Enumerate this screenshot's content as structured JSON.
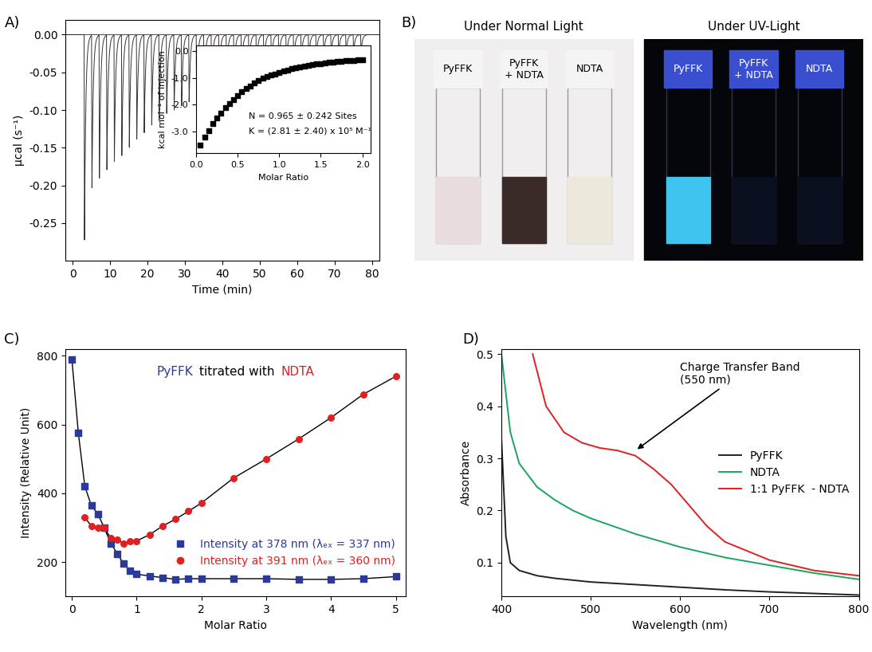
{
  "chart_data": [
    {
      "label": "A)",
      "type": "thermogram",
      "color": "#333333",
      "xlabel": "Time (min)",
      "ylabel": "µcal (s⁻¹)",
      "x": [
        3,
        5,
        7,
        9,
        11,
        13,
        15,
        17,
        19,
        21,
        23,
        25,
        27,
        29,
        31,
        33,
        35,
        37,
        39,
        41,
        43,
        45,
        47,
        49,
        51,
        53,
        55,
        57,
        59,
        61,
        63,
        65,
        67,
        69,
        71,
        73,
        75,
        77
      ],
      "values": [
        -0.275,
        -0.205,
        -0.19,
        -0.18,
        -0.17,
        -0.16,
        -0.15,
        -0.14,
        -0.13,
        -0.12,
        -0.115,
        -0.105,
        -0.1,
        -0.095,
        -0.09,
        -0.085,
        -0.08,
        -0.075,
        -0.07,
        -0.066,
        -0.062,
        -0.058,
        -0.055,
        -0.052,
        -0.05,
        -0.047,
        -0.045,
        -0.043,
        -0.04,
        -0.038,
        -0.036,
        -0.034,
        -0.032,
        -0.03,
        -0.028,
        -0.027,
        -0.026,
        -0.025
      ],
      "baseline": 0,
      "xlim": [
        -2,
        82
      ],
      "ylim": [
        -0.3,
        0.02
      ],
      "xticks": [
        0,
        10,
        20,
        30,
        40,
        50,
        60,
        70,
        80
      ],
      "yticks": [
        {
          "value": 0,
          "label": "0.00"
        },
        {
          "value": -0.05,
          "label": "-0.05"
        },
        {
          "value": -0.1,
          "label": "-0.10"
        },
        {
          "value": -0.15,
          "label": "-0.15"
        },
        {
          "value": -0.2,
          "label": "-0.20"
        },
        {
          "value": -0.25,
          "label": "-0.25"
        }
      ],
      "inset": {
        "type": "scatter",
        "marker": "square",
        "color": "#000000",
        "xlabel": "Molar Ratio",
        "ylabel": "kcal mol⁻¹ of injection",
        "annotations": [
          "N = 0.965 ± 0.242 Sites",
          "K = (2.81 ± 2.40) x 10⁵ M⁻¹"
        ],
        "x": [
          0.05,
          0.1,
          0.15,
          0.2,
          0.25,
          0.3,
          0.35,
          0.4,
          0.45,
          0.5,
          0.55,
          0.6,
          0.65,
          0.7,
          0.75,
          0.8,
          0.85,
          0.9,
          0.95,
          1.0,
          1.05,
          1.1,
          1.15,
          1.2,
          1.25,
          1.3,
          1.35,
          1.4,
          1.45,
          1.5,
          1.55,
          1.6,
          1.65,
          1.7,
          1.75,
          1.8,
          1.85,
          1.9,
          1.95,
          2.0
        ],
        "values": [
          -3.5,
          -3.2,
          -2.95,
          -2.7,
          -2.5,
          -2.3,
          -2.1,
          -1.95,
          -1.8,
          -1.65,
          -1.5,
          -1.4,
          -1.3,
          -1.2,
          -1.1,
          -1.0,
          -0.95,
          -0.9,
          -0.85,
          -0.8,
          -0.75,
          -0.7,
          -0.66,
          -0.62,
          -0.58,
          -0.55,
          -0.52,
          -0.5,
          -0.48,
          -0.46,
          -0.44,
          -0.42,
          -0.4,
          -0.39,
          -0.38,
          -0.37,
          -0.36,
          -0.35,
          -0.34,
          -0.33
        ],
        "xlim": [
          0,
          2.1
        ],
        "ylim": [
          -3.8,
          0.2
        ],
        "xticks": [
          {
            "value": 0,
            "label": "0.0"
          },
          {
            "value": 0.5,
            "label": "0.5"
          },
          {
            "value": 1,
            "label": "1.0"
          },
          {
            "value": 1.5,
            "label": "1.5"
          },
          {
            "value": 2,
            "label": "2.0"
          }
        ],
        "yticks": [
          {
            "value": 0,
            "label": "0.0"
          },
          {
            "value": -1,
            "label": "-1.0"
          },
          {
            "value": -2,
            "label": "-2.0"
          },
          {
            "value": -3,
            "label": "-3.0"
          }
        ]
      }
    },
    {
      "label": "C)",
      "type": "scatter",
      "annotation_parts": [
        {
          "text": "PyFFK",
          "color": "#2a3a9a"
        },
        {
          "text": "titrated with",
          "color": "#000000"
        },
        {
          "text": "NDTA",
          "color": "#e02020"
        }
      ],
      "xlabel": "Molar Ratio",
      "ylabel": "Intensity (Relative Unit)",
      "xlim": [
        -0.1,
        5.15
      ],
      "ylim": [
        100,
        820
      ],
      "xticks": [
        0,
        1,
        2,
        3,
        4,
        5
      ],
      "yticks": [
        200,
        400,
        600,
        800
      ],
      "legend": "lower right",
      "series": [
        {
          "name": "Intensity at 378 nm (λₑₓ = 337 nm)",
          "color": "#2a3a9a",
          "marker": "square",
          "x": [
            0,
            0.1,
            0.2,
            0.3,
            0.4,
            0.5,
            0.6,
            0.7,
            0.8,
            0.9,
            1.0,
            1.2,
            1.4,
            1.6,
            1.8,
            2.0,
            2.5,
            3.0,
            3.5,
            4.0,
            4.5,
            5.0
          ],
          "values": [
            790,
            575,
            420,
            365,
            340,
            300,
            255,
            225,
            195,
            175,
            165,
            160,
            155,
            150,
            152,
            152,
            152,
            152,
            150,
            150,
            152,
            158
          ]
        },
        {
          "name": "Intensity at 391 nm (λₑₓ = 360 nm)",
          "color": "#e02020",
          "marker": "circle",
          "x": [
            0.2,
            0.3,
            0.4,
            0.5,
            0.6,
            0.7,
            0.8,
            0.9,
            1.0,
            1.2,
            1.4,
            1.6,
            1.8,
            2.0,
            2.5,
            3.0,
            3.5,
            4.0,
            4.5,
            5.0
          ],
          "values": [
            330,
            305,
            300,
            300,
            270,
            265,
            255,
            260,
            262,
            280,
            305,
            325,
            348,
            372,
            445,
            500,
            558,
            620,
            688,
            740
          ]
        }
      ]
    },
    {
      "label": "D)",
      "type": "line",
      "xlabel": "Wavelength (nm)",
      "ylabel": "Absorbance",
      "xlim": [
        400,
        800
      ],
      "ylim": [
        0.035,
        0.51
      ],
      "xticks": [
        400,
        500,
        600,
        700,
        800
      ],
      "yticks": [
        0.1,
        0.2,
        0.3,
        0.4,
        0.5
      ],
      "legend": "center right",
      "annotation": {
        "text": "Charge Transfer Band\n(550 nm)",
        "x": 550
      },
      "series": [
        {
          "name": "PyFFK",
          "color": "#222222",
          "x": [
            400,
            405,
            410,
            420,
            440,
            460,
            500,
            550,
            600,
            650,
            700,
            750,
            800
          ],
          "values": [
            0.34,
            0.15,
            0.1,
            0.085,
            0.075,
            0.07,
            0.063,
            0.058,
            0.053,
            0.048,
            0.044,
            0.041,
            0.038
          ]
        },
        {
          "name": "NDTA",
          "color": "#1aa55a",
          "x": [
            400,
            410,
            420,
            440,
            460,
            480,
            500,
            550,
            600,
            650,
            700,
            750,
            800
          ],
          "values": [
            0.5,
            0.35,
            0.29,
            0.245,
            0.22,
            0.2,
            0.185,
            0.155,
            0.13,
            0.11,
            0.095,
            0.08,
            0.068
          ]
        },
        {
          "name": "1:1 PyFFK  - NDTA",
          "color": "#e02020",
          "x": [
            435,
            450,
            470,
            490,
            510,
            530,
            550,
            570,
            590,
            610,
            630,
            650,
            700,
            750,
            800
          ],
          "values": [
            0.5,
            0.4,
            0.35,
            0.33,
            0.32,
            0.315,
            0.305,
            0.28,
            0.25,
            0.21,
            0.17,
            0.14,
            0.105,
            0.085,
            0.075
          ]
        }
      ]
    }
  ],
  "photos": {
    "label": "B)",
    "panels": [
      {
        "title": "Under Normal Light",
        "background": "#f0eeee",
        "vials": [
          {
            "label": "PyFFK",
            "color": "#e9dcdc"
          },
          {
            "label": "PyFFK\n+ NDTA",
            "color": "#3a2a28"
          },
          {
            "label": "NDTA",
            "color": "#ece8dc"
          }
        ]
      },
      {
        "title": "Under UV-Light",
        "background": "#05060a",
        "vials": [
          {
            "label": "PyFFK",
            "color": "#3fc4f0"
          },
          {
            "label": "PyFFK\n+ NDTA",
            "color": "#0b1020"
          },
          {
            "label": "NDTA",
            "color": "#0b1020"
          }
        ]
      }
    ]
  }
}
